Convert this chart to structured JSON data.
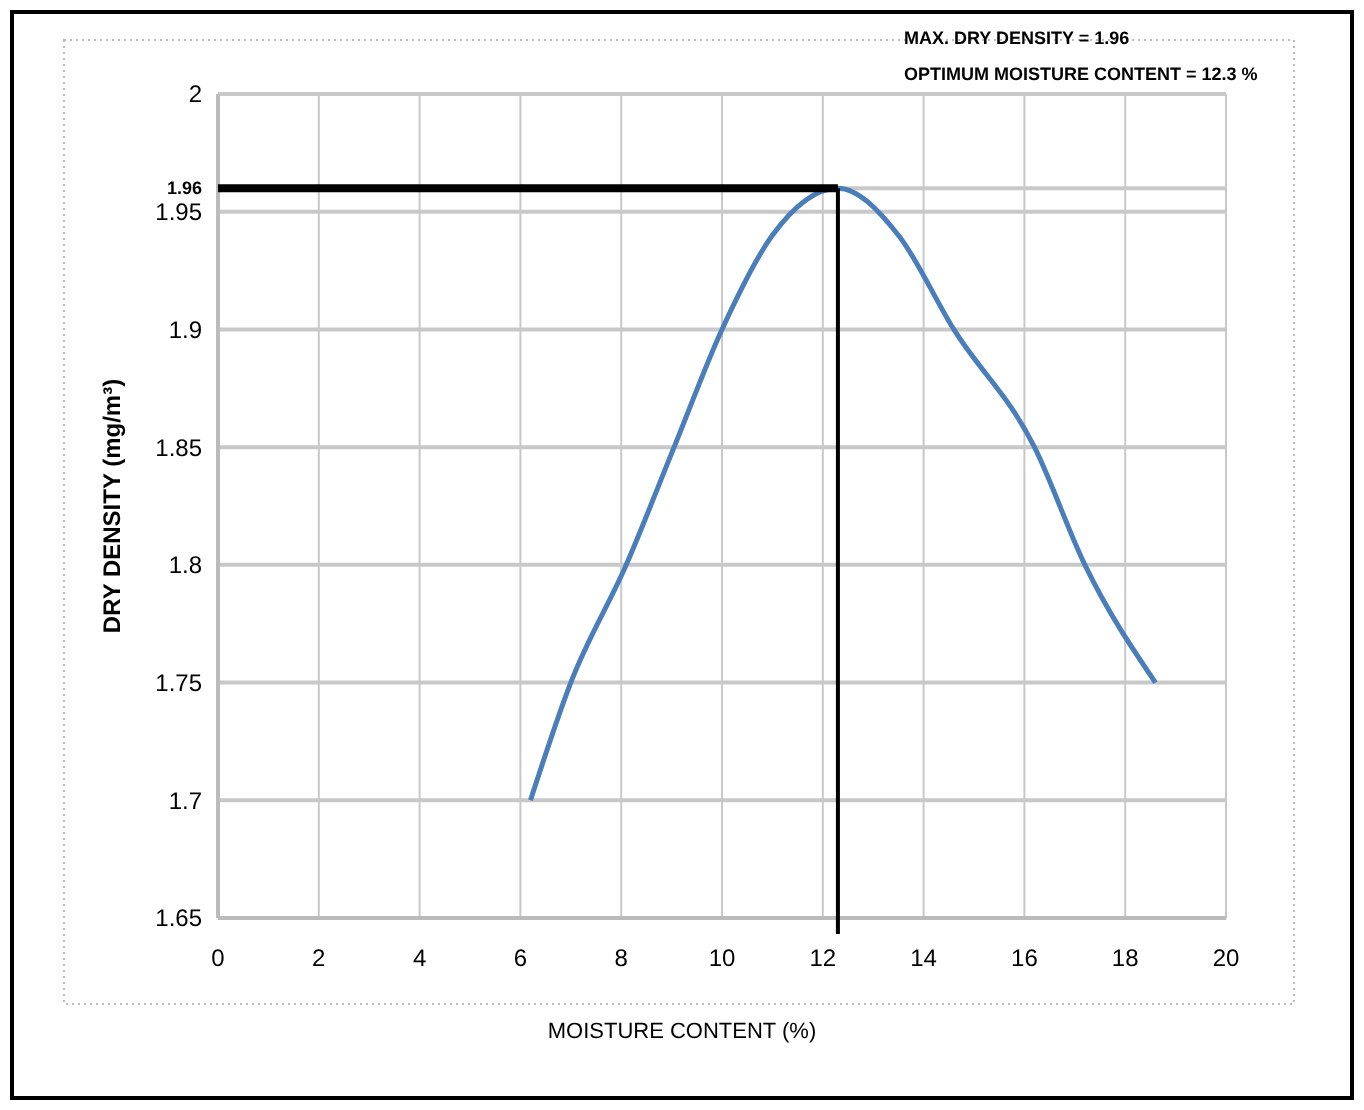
{
  "chart_data": {
    "type": "line",
    "xlabel": "MOISTURE CONTENT (%)",
    "ylabel": "DRY DENSITY  (mg/m³)",
    "annotations": [
      "MAX. DRY DENSITY = 1.96",
      "OPTIMUM MOISTURE CONTENT = 12.3 %"
    ],
    "series": [
      {
        "color": "#4a7ebb",
        "x": [
          6.2,
          7.0,
          8.1,
          9.05,
          10.0,
          11.0,
          12.3,
          13.5,
          14.6,
          16.2,
          17.2,
          18.6
        ],
        "values": [
          1.7,
          1.75,
          1.8,
          1.85,
          1.9,
          1.94,
          1.96,
          1.94,
          1.9,
          1.85,
          1.8,
          1.75
        ]
      }
    ],
    "xlim": [
      0,
      20
    ],
    "xticks": [
      0,
      2,
      4,
      6,
      8,
      10,
      12,
      14,
      16,
      18,
      20
    ],
    "ylim": [
      1.65,
      2
    ],
    "yticks": [
      1.65,
      1.7,
      1.75,
      1.8,
      1.85,
      1.9,
      1.95,
      1.96,
      2
    ],
    "ref_lines": [
      {
        "axis": "y",
        "value": 1.96,
        "color": "#000000"
      },
      {
        "axis": "x",
        "value": 12.3,
        "color": "#000000"
      }
    ],
    "grid": true,
    "marker": "none",
    "line_style": "solid"
  }
}
